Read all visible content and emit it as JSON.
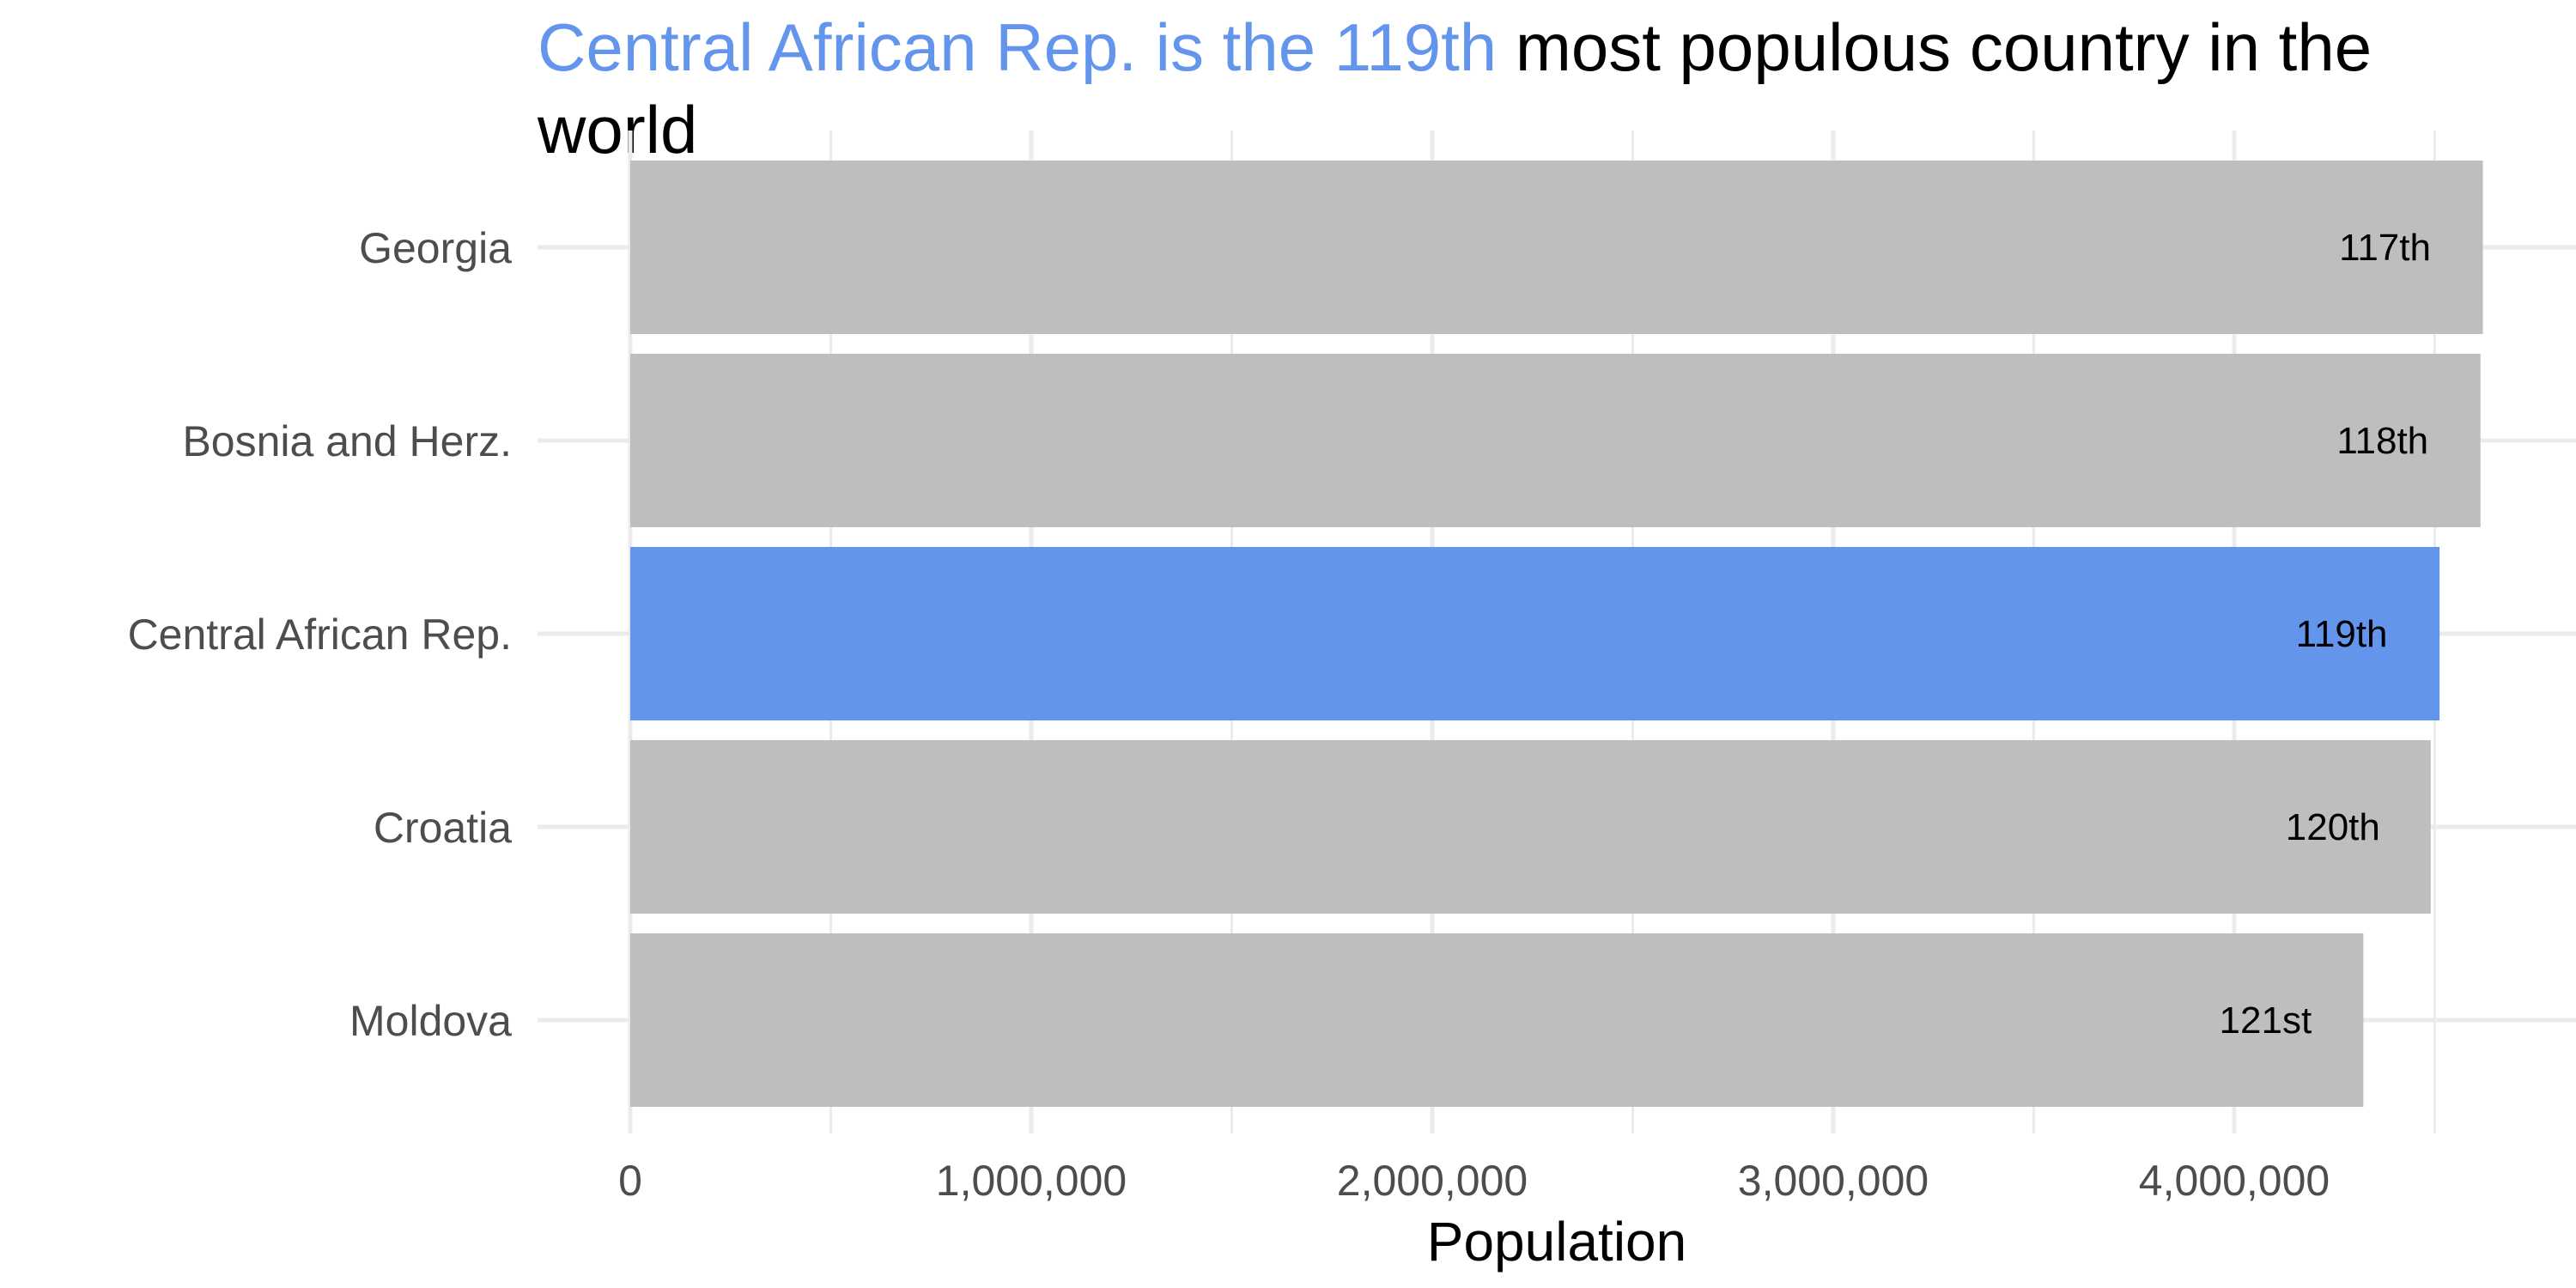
{
  "chart_data": {
    "type": "bar",
    "orientation": "horizontal",
    "title": {
      "highlight": "Central African Rep. is the 119th",
      "rest": " most populous country in the world"
    },
    "xlabel": "Population",
    "ylabel": "",
    "xlim": [
      0,
      4700000
    ],
    "x_ticks": [
      0,
      1000000,
      2000000,
      3000000,
      4000000
    ],
    "x_tick_labels": [
      "0",
      "1,000,000",
      "2,000,000",
      "3,000,000",
      "4,000,000"
    ],
    "grid": true,
    "highlight_color": "#6495ed",
    "default_color": "#bebebe",
    "categories": [
      "Georgia",
      "Bosnia and Herz.",
      "Central African Rep.",
      "Croatia",
      "Moldova"
    ],
    "values": [
      4620000,
      4614000,
      4512000,
      4490000,
      4322000
    ],
    "labels": [
      "117th",
      "118th",
      "119th",
      "120th",
      "121st"
    ],
    "highlighted": [
      "Central African Rep."
    ]
  }
}
